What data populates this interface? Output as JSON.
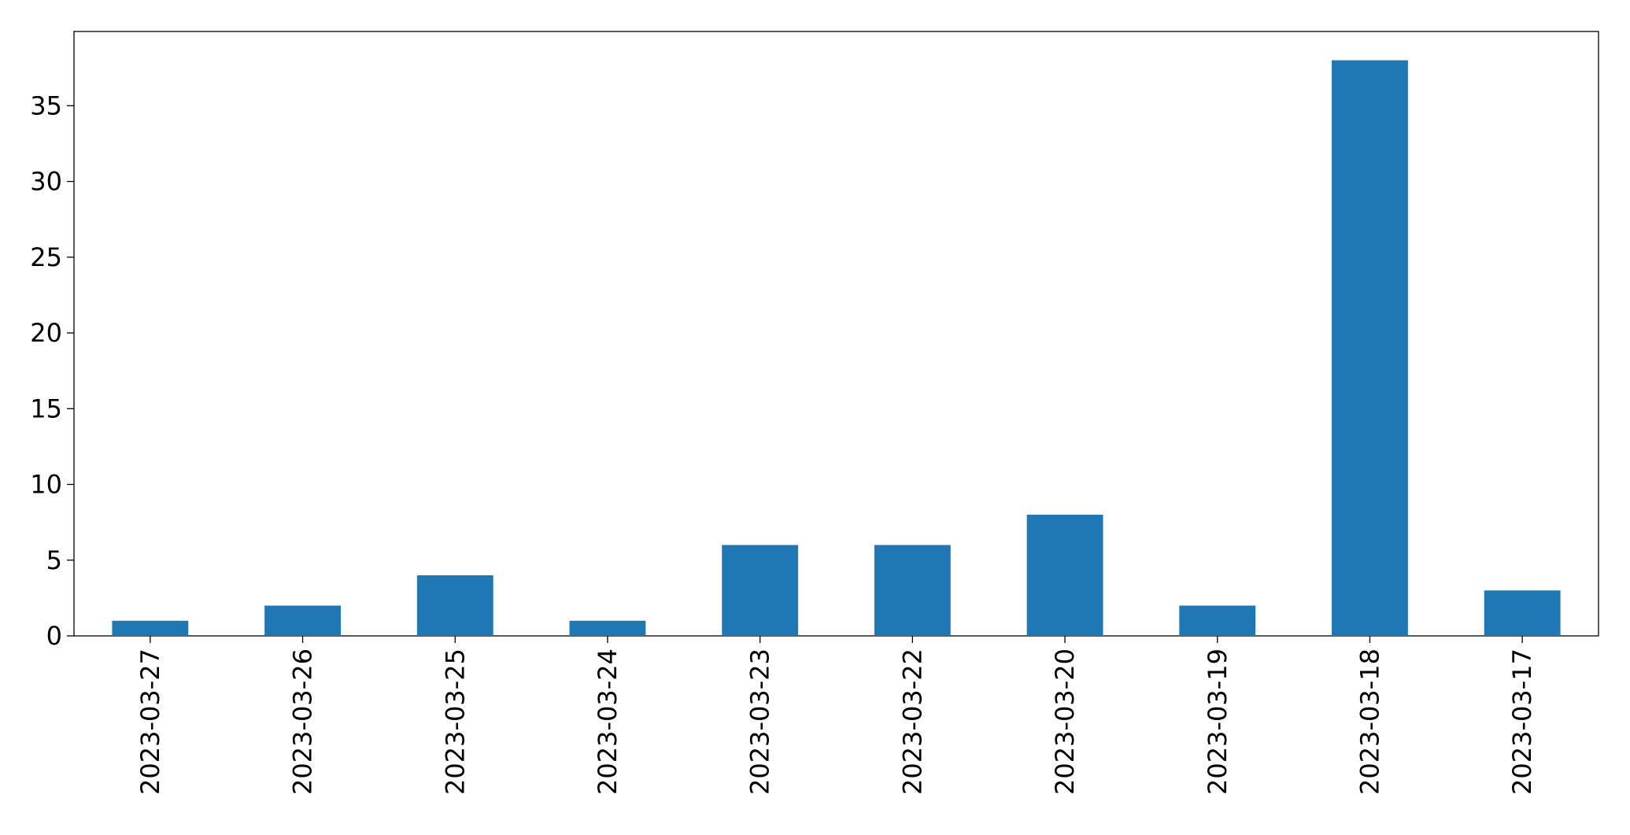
{
  "chart_data": {
    "type": "bar",
    "categories": [
      "2023-03-27",
      "2023-03-26",
      "2023-03-25",
      "2023-03-24",
      "2023-03-23",
      "2023-03-22",
      "2023-03-20",
      "2023-03-19",
      "2023-03-18",
      "2023-03-17"
    ],
    "values": [
      1,
      2,
      4,
      1,
      6,
      6,
      8,
      2,
      38,
      3
    ],
    "color": "#1f77b4",
    "ylim": [
      0,
      39.9
    ],
    "yticks": [
      0,
      5,
      10,
      15,
      20,
      25,
      30,
      35
    ],
    "grid": false
  }
}
